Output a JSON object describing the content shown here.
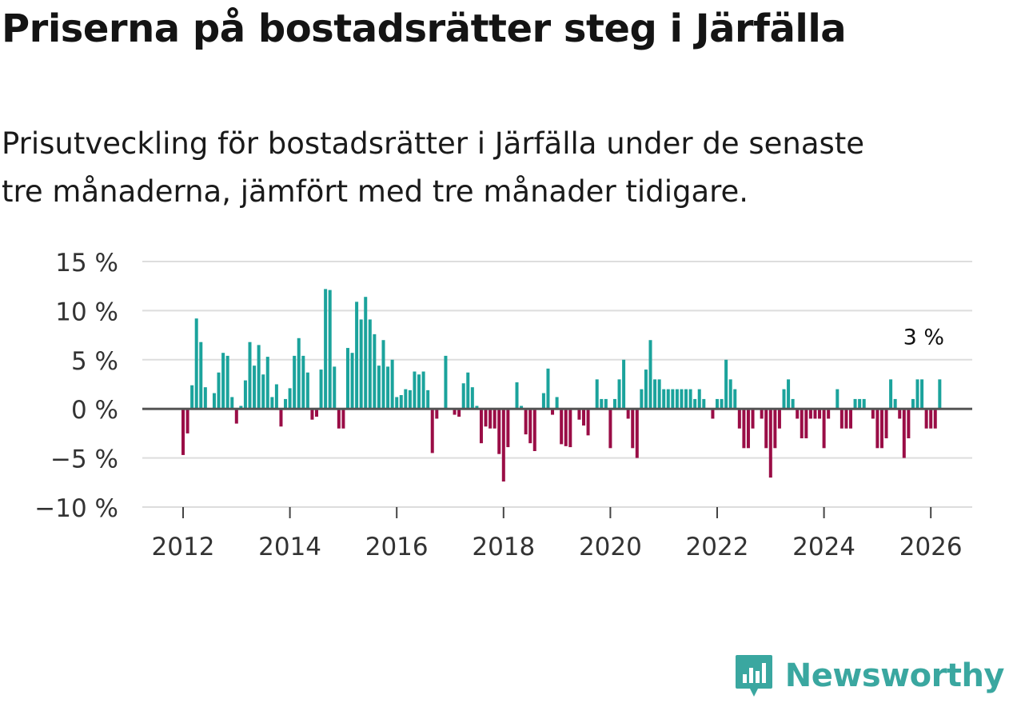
{
  "title": "Priserna på bostadsrätter steg i Järfälla",
  "subtitle_lines": [
    "Prisutveckling för bostadsrätter i Järfälla under de senaste",
    "tre månaderna, jämfört med tre månader tidigare."
  ],
  "brand": {
    "name": "Newsworthy"
  },
  "colors": {
    "positive": "#1ba39c",
    "negative": "#9a0d46",
    "grid": "#dddddd",
    "zero": "#555555",
    "brand": "#3aa7a0"
  },
  "chart_data": {
    "type": "bar",
    "title": "Priserna på bostadsrätter steg i Järfälla",
    "xlabel": "",
    "ylabel": "",
    "unit": "%",
    "ylim": [
      -10,
      15
    ],
    "y_ticks": [
      15,
      10,
      5,
      0,
      -5,
      -10
    ],
    "y_tick_labels": [
      "15 %",
      "10 %",
      "5 %",
      "0 %",
      "−5 %",
      "−10 %"
    ],
    "x_ticks": [
      2012,
      2014,
      2016,
      2018,
      2020,
      2022,
      2024,
      2026
    ],
    "x_tick_labels": [
      "2012",
      "2014",
      "2016",
      "2018",
      "2020",
      "2022",
      "2024",
      "2026"
    ],
    "start": "2012-01",
    "frequency": "monthly",
    "values": [
      -4.7,
      -2.5,
      2.4,
      9.2,
      6.8,
      2.2,
      0,
      1.6,
      3.7,
      5.7,
      5.4,
      1.2,
      -1.5,
      0.3,
      2.9,
      6.8,
      4.4,
      6.5,
      3.5,
      5.3,
      1.2,
      2.5,
      -1.8,
      1.0,
      2.1,
      5.4,
      7.2,
      5.4,
      3.7,
      -1.1,
      -0.8,
      4.0,
      12.2,
      12.1,
      4.3,
      -2.0,
      -2.0,
      6.2,
      5.7,
      10.9,
      9.1,
      11.4,
      9.1,
      7.6,
      4.4,
      7.0,
      4.3,
      5.0,
      1.2,
      1.4,
      2.0,
      1.9,
      3.8,
      3.5,
      3.8,
      1.9,
      -4.5,
      -1.0,
      0,
      5.4,
      0,
      -0.6,
      -0.8,
      2.6,
      3.7,
      2.2,
      0.3,
      -3.5,
      -1.8,
      -2.0,
      -2.0,
      -4.6,
      -7.4,
      -3.9,
      0,
      2.7,
      0.3,
      -2.6,
      -3.5,
      -4.3,
      0,
      1.6,
      4.1,
      -0.6,
      1.2,
      -3.6,
      -3.8,
      -3.9,
      0,
      -1.1,
      -1.7,
      -2.7,
      0,
      3.0,
      1.0,
      1.0,
      -4.0,
      1.0,
      3.0,
      5.0,
      -1.0,
      -4.0,
      -5.0,
      2.0,
      4.0,
      7.0,
      3.0,
      3.0,
      2.0,
      2.0,
      2.0,
      2.0,
      2.0,
      2.0,
      2.0,
      1.0,
      2.0,
      1.0,
      0,
      -1.0,
      1.0,
      1.0,
      5.0,
      3.0,
      2.0,
      -2.0,
      -4.0,
      -4.0,
      -2.0,
      0,
      -1.0,
      -4.0,
      -7.0,
      -4.0,
      -2.0,
      2.0,
      3.0,
      1.0,
      -1.0,
      -3.0,
      -3.0,
      -1.0,
      -1.0,
      -1.0,
      -4.0,
      -1.0,
      0,
      2.0,
      -2.0,
      -2.0,
      -2.0,
      1.0,
      1.0,
      1.0,
      0,
      -1.0,
      -4.0,
      -4.0,
      -3.0,
      3.0,
      1.0,
      -1.0,
      -5.0,
      -3.0,
      1.0,
      3.0,
      3.0,
      -2.0,
      -2.0,
      -2.0,
      3.0
    ],
    "annotation": {
      "label": "3 %",
      "target": "last"
    }
  }
}
